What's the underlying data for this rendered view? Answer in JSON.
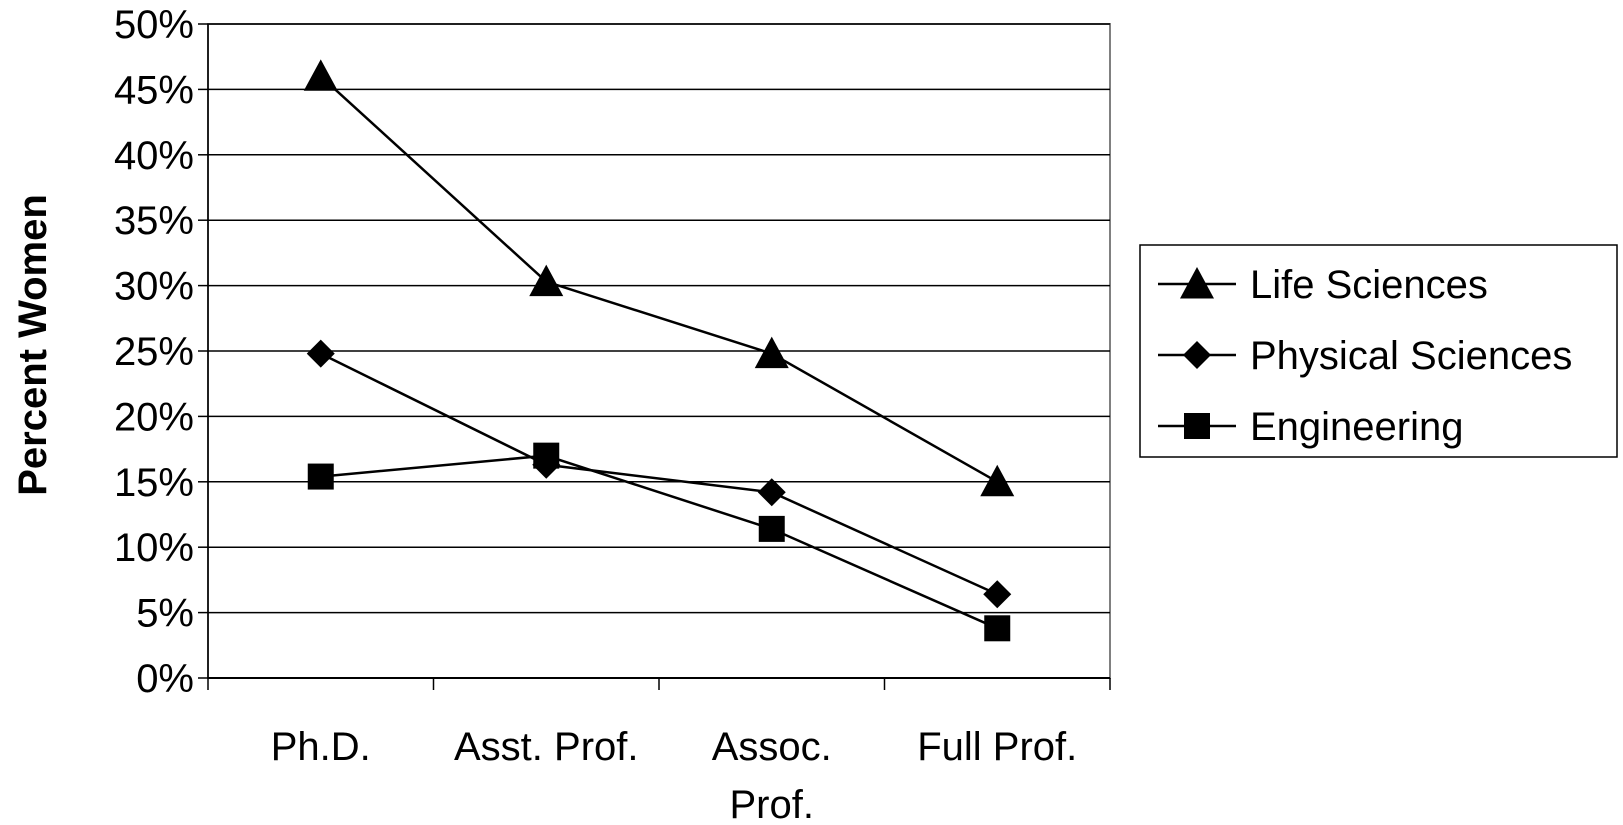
{
  "chart_data": {
    "type": "line",
    "title": "",
    "xlabel": "",
    "ylabel": "Percent Women",
    "categories": [
      [
        "Ph.D."
      ],
      [
        "Asst. Prof."
      ],
      [
        "Assoc.",
        "Prof."
      ],
      [
        "Full Prof."
      ]
    ],
    "ylim": [
      0,
      50
    ],
    "yticks": [
      0,
      5,
      10,
      15,
      20,
      25,
      30,
      35,
      40,
      45,
      50
    ],
    "ytick_labels": [
      "0%",
      "5%",
      "10%",
      "15%",
      "20%",
      "25%",
      "30%",
      "35%",
      "40%",
      "45%",
      "50%"
    ],
    "grid": "horizontal",
    "legend_position": "right",
    "series": [
      {
        "name": "Life Sciences",
        "marker": "triangle",
        "color": "#000000",
        "values": [
          46,
          30.3,
          24.8,
          15
        ]
      },
      {
        "name": "Physical Sciences",
        "marker": "diamond",
        "color": "#000000",
        "values": [
          24.8,
          16.3,
          14.2,
          6.4
        ]
      },
      {
        "name": "Engineering",
        "marker": "square",
        "color": "#000000",
        "values": [
          15.4,
          17,
          11.4,
          3.8
        ]
      }
    ]
  }
}
